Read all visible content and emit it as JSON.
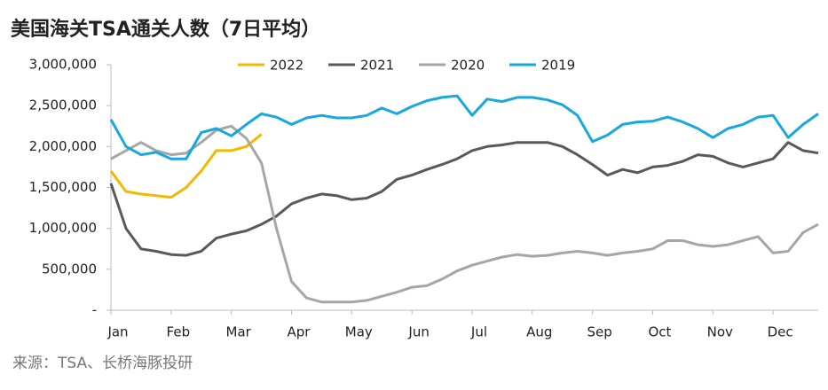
{
  "chart_data": {
    "type": "line",
    "title": "美国海关TSA通关人数（7日平均）",
    "source": "来源：TSA、长桥海豚投研",
    "categories": [
      "Jan",
      null,
      null,
      null,
      "Feb",
      null,
      null,
      null,
      "Mar",
      null,
      null,
      null,
      "Apr",
      null,
      null,
      null,
      "May",
      null,
      null,
      null,
      "Jun",
      null,
      null,
      null,
      "Jul",
      null,
      null,
      null,
      "Aug",
      null,
      null,
      null,
      "Sep",
      null,
      null,
      null,
      "Oct",
      null,
      null,
      null,
      "Nov",
      null,
      null,
      null,
      "Dec",
      null,
      null,
      null
    ],
    "series": [
      {
        "name": "2022",
        "color": "#f5b800",
        "values": [
          1700000,
          1450000,
          1420000,
          1400000,
          1380000,
          1500000,
          1700000,
          1950000,
          1950000,
          2000000,
          2150000,
          null,
          null,
          null,
          null,
          null,
          null,
          null,
          null,
          null,
          null,
          null,
          null,
          null,
          null,
          null,
          null,
          null,
          null,
          null,
          null,
          null,
          null,
          null,
          null,
          null,
          null,
          null,
          null,
          null,
          null,
          null,
          null,
          null,
          null,
          null,
          null,
          null
        ]
      },
      {
        "name": "2021",
        "color": "#595959",
        "values": [
          1550000,
          1000000,
          750000,
          720000,
          680000,
          670000,
          720000,
          880000,
          930000,
          970000,
          1050000,
          1150000,
          1300000,
          1370000,
          1420000,
          1400000,
          1350000,
          1370000,
          1450000,
          1600000,
          1650000,
          1720000,
          1780000,
          1850000,
          1950000,
          2000000,
          2020000,
          2050000,
          2050000,
          2050000,
          2000000,
          1900000,
          1780000,
          1650000,
          1720000,
          1680000,
          1750000,
          1770000,
          1820000,
          1900000,
          1880000,
          1800000,
          1750000,
          1800000,
          1850000,
          2050000,
          1950000,
          1920000
        ]
      },
      {
        "name": "2020",
        "color": "#a6a6a6",
        "values": [
          1850000,
          1950000,
          2050000,
          1950000,
          1900000,
          1920000,
          2050000,
          2200000,
          2250000,
          2100000,
          1800000,
          1000000,
          350000,
          150000,
          100000,
          100000,
          100000,
          120000,
          170000,
          220000,
          280000,
          300000,
          380000,
          480000,
          550000,
          600000,
          650000,
          680000,
          660000,
          670000,
          700000,
          720000,
          700000,
          670000,
          700000,
          720000,
          750000,
          850000,
          850000,
          800000,
          780000,
          800000,
          850000,
          900000,
          700000,
          720000,
          950000,
          1050000
        ]
      },
      {
        "name": "2019",
        "color": "#17a8e0",
        "values": [
          2330000,
          2000000,
          1900000,
          1930000,
          1850000,
          1850000,
          2170000,
          2220000,
          2130000,
          2270000,
          2400000,
          2360000,
          2270000,
          2350000,
          2380000,
          2350000,
          2350000,
          2380000,
          2470000,
          2400000,
          2490000,
          2560000,
          2600000,
          2620000,
          2380000,
          2580000,
          2550000,
          2600000,
          2600000,
          2570000,
          2510000,
          2380000,
          2060000,
          2140000,
          2270000,
          2300000,
          2310000,
          2360000,
          2300000,
          2220000,
          2110000,
          2220000,
          2270000,
          2360000,
          2380000,
          2110000,
          2270000,
          2400000
        ]
      }
    ],
    "ylim": [
      0,
      3000000
    ],
    "yticks": [
      {
        "value": 0,
        "label": "-"
      },
      {
        "value": 500000,
        "label": "500,000"
      },
      {
        "value": 1000000,
        "label": "1,000,000"
      },
      {
        "value": 1500000,
        "label": "1,500,000"
      },
      {
        "value": 2000000,
        "label": "2,000,000"
      },
      {
        "value": 2500000,
        "label": "2,500,000"
      },
      {
        "value": 3000000,
        "label": "3,000,000"
      }
    ],
    "grid": false,
    "legend": "top"
  }
}
